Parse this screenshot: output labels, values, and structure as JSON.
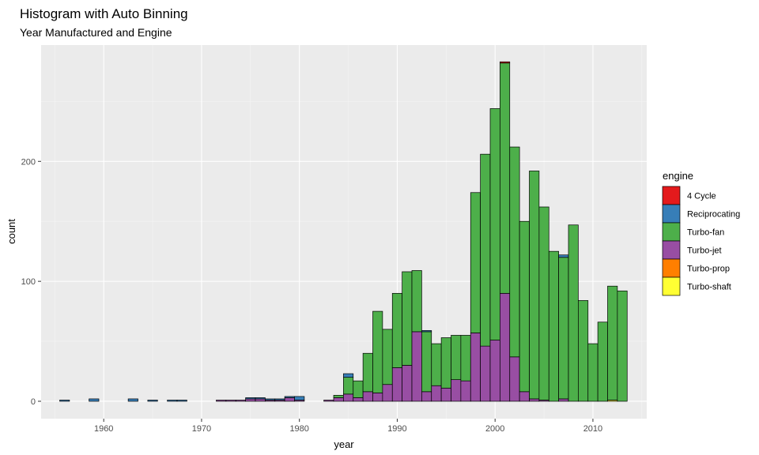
{
  "chart_data": {
    "type": "bar",
    "stacked": true,
    "title": "Histogram with Auto Binning",
    "subtitle": "Year Manufactured and Engine",
    "xlabel": "year",
    "ylabel": "count",
    "xlim": [
      1953.6,
      2015.5
    ],
    "ylim": [
      -14.5,
      297
    ],
    "x_ticks": [
      1960,
      1970,
      1980,
      1990,
      2000,
      2010
    ],
    "y_ticks": [
      0,
      100,
      200
    ],
    "bin_width": 1,
    "grid": true,
    "legend": {
      "title": "engine",
      "position": "right"
    },
    "colors": {
      "4 Cycle": "#e41a1c",
      "Reciprocating": "#377eb8",
      "Turbo-fan": "#4daf4a",
      "Turbo-jet": "#984ea3",
      "Turbo-prop": "#ff7f00",
      "Turbo-shaft": "#ffff33"
    },
    "x": [
      1956,
      1957,
      1958,
      1959,
      1960,
      1961,
      1962,
      1963,
      1964,
      1965,
      1966,
      1967,
      1968,
      1969,
      1970,
      1971,
      1972,
      1973,
      1974,
      1975,
      1976,
      1977,
      1978,
      1979,
      1980,
      1981,
      1982,
      1983,
      1984,
      1985,
      1986,
      1987,
      1988,
      1989,
      1990,
      1991,
      1992,
      1993,
      1994,
      1995,
      1996,
      1997,
      1998,
      1999,
      2000,
      2001,
      2002,
      2003,
      2004,
      2005,
      2006,
      2007,
      2008,
      2009,
      2010,
      2011,
      2012,
      2013
    ],
    "series": [
      {
        "name": "4 Cycle",
        "values": [
          0,
          0,
          0,
          0,
          0,
          0,
          0,
          0,
          0,
          0,
          0,
          0,
          0,
          0,
          0,
          0,
          0,
          0,
          0,
          0,
          0,
          0,
          0,
          0,
          0,
          0,
          0,
          0,
          0,
          0,
          0,
          0,
          0,
          0,
          0,
          0,
          0,
          0,
          0,
          0,
          0,
          0,
          0,
          0,
          0,
          1,
          0,
          0,
          0,
          0,
          0,
          0,
          0,
          0,
          0,
          0,
          0,
          0
        ]
      },
      {
        "name": "Reciprocating",
        "values": [
          1,
          0,
          0,
          2,
          0,
          0,
          0,
          2,
          0,
          1,
          0,
          1,
          1,
          0,
          0,
          0,
          0,
          0,
          0,
          1,
          1,
          1,
          1,
          1,
          3,
          0,
          0,
          0,
          0,
          3,
          0,
          0,
          0,
          0,
          0,
          0,
          0,
          1,
          0,
          0,
          0,
          0,
          0,
          0,
          0,
          0,
          0,
          0,
          0,
          0,
          0,
          2,
          0,
          0,
          0,
          0,
          0,
          0
        ]
      },
      {
        "name": "Turbo-fan",
        "values": [
          0,
          0,
          0,
          0,
          0,
          0,
          0,
          0,
          0,
          0,
          0,
          0,
          0,
          0,
          0,
          0,
          0,
          0,
          0,
          0,
          0,
          0,
          0,
          0,
          0,
          0,
          0,
          0,
          2,
          14,
          14,
          32,
          68,
          46,
          62,
          78,
          51,
          50,
          35,
          42,
          37,
          38,
          117,
          160,
          193,
          192,
          175,
          142,
          190,
          161,
          125,
          118,
          147,
          84,
          48,
          66,
          95,
          92
        ]
      },
      {
        "name": "Turbo-jet",
        "values": [
          0,
          0,
          0,
          0,
          0,
          0,
          0,
          0,
          0,
          0,
          0,
          0,
          0,
          0,
          0,
          0,
          1,
          1,
          1,
          2,
          2,
          1,
          1,
          3,
          1,
          0,
          0,
          1,
          3,
          6,
          3,
          8,
          7,
          14,
          28,
          30,
          58,
          8,
          13,
          11,
          18,
          17,
          57,
          46,
          51,
          90,
          37,
          8,
          2,
          1,
          0,
          2,
          0,
          0,
          0,
          0,
          0,
          0
        ]
      },
      {
        "name": "Turbo-prop",
        "values": [
          0,
          0,
          0,
          0,
          0,
          0,
          0,
          0,
          0,
          0,
          0,
          0,
          0,
          0,
          0,
          0,
          0,
          0,
          0,
          0,
          0,
          0,
          0,
          0,
          0,
          0,
          0,
          0,
          0,
          0,
          0,
          0,
          0,
          0,
          0,
          0,
          0,
          0,
          0,
          0,
          0,
          0,
          0,
          0,
          0,
          0,
          0,
          0,
          0,
          0,
          0,
          0,
          0,
          0,
          0,
          0,
          0,
          0
        ]
      },
      {
        "name": "Turbo-shaft",
        "values": [
          0,
          0,
          0,
          0,
          0,
          0,
          0,
          0,
          0,
          0,
          0,
          0,
          0,
          0,
          0,
          0,
          0,
          0,
          0,
          0,
          0,
          0,
          0,
          0,
          0,
          0,
          0,
          0,
          0,
          0,
          0,
          0,
          0,
          0,
          0,
          0,
          0,
          0,
          0,
          0,
          0,
          0,
          0,
          0,
          0,
          0,
          0,
          0,
          0,
          0,
          0,
          0,
          0,
          0,
          0,
          0,
          1,
          0
        ]
      }
    ]
  }
}
